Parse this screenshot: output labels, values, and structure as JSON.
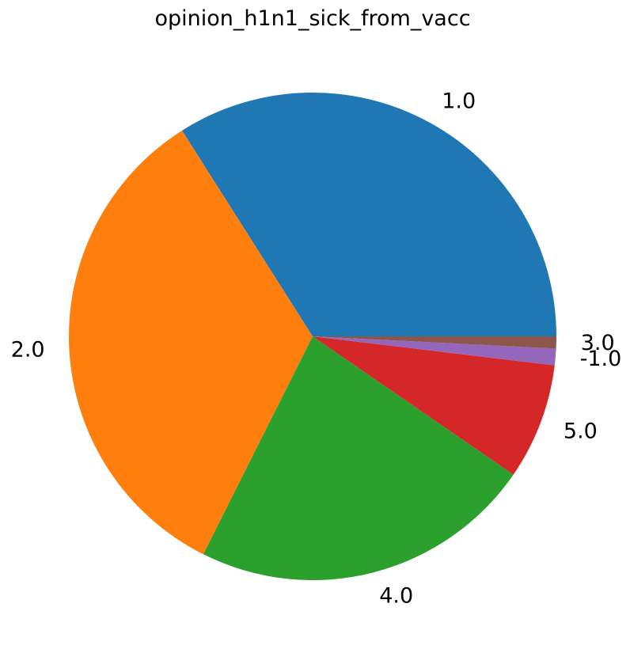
{
  "chart_data": {
    "type": "pie",
    "title": "opinion_h1n1_sick_from_vacc",
    "categories": [
      "1.0",
      "2.0",
      "4.0",
      "5.0",
      "-1.0",
      "3.0"
    ],
    "values": [
      34.0,
      33.6,
      22.8,
      7.7,
      1.1,
      0.8
    ],
    "colors": [
      "#1f77b4",
      "#ff7f0e",
      "#2ca02c",
      "#d62728",
      "#9467bd",
      "#8c564b"
    ],
    "start_angle_deg": 0,
    "direction": "counterclockwise",
    "legend": "none"
  }
}
